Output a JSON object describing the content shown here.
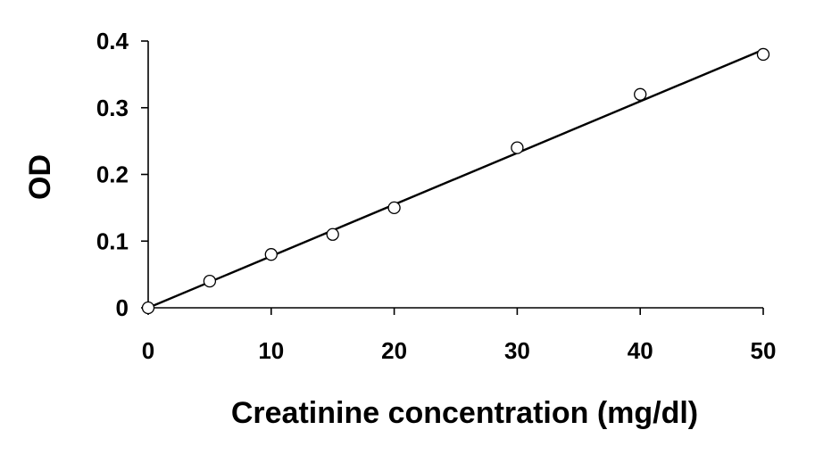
{
  "chart_data": {
    "type": "scatter",
    "title": "",
    "xlabel": "Creatinine concentration (mg/dl)",
    "ylabel": "OD",
    "xlim": [
      0,
      50
    ],
    "ylim": [
      0,
      0.4
    ],
    "x_ticks": [
      {
        "value": 0,
        "label": "0"
      },
      {
        "value": 10,
        "label": "10"
      },
      {
        "value": 20,
        "label": "20"
      },
      {
        "value": 30,
        "label": "30"
      },
      {
        "value": 40,
        "label": "40"
      },
      {
        "value": 50,
        "label": "50"
      }
    ],
    "y_ticks": [
      {
        "value": 0,
        "label": "0"
      },
      {
        "value": 0.1,
        "label": "0.1"
      },
      {
        "value": 0.2,
        "label": "0.2"
      },
      {
        "value": 0.3,
        "label": "0.3"
      },
      {
        "value": 0.4,
        "label": "0.4"
      }
    ],
    "grid": false,
    "legend": "none",
    "series": [
      {
        "marker": "open-circle",
        "color": "#000000",
        "points": [
          {
            "x": 0,
            "y": 0.0
          },
          {
            "x": 5,
            "y": 0.04
          },
          {
            "x": 10,
            "y": 0.08
          },
          {
            "x": 15,
            "y": 0.11
          },
          {
            "x": 20,
            "y": 0.15
          },
          {
            "x": 30,
            "y": 0.24
          },
          {
            "x": 40,
            "y": 0.32
          },
          {
            "x": 50,
            "y": 0.38
          }
        ]
      }
    ],
    "fit_line": {
      "kind": "linear",
      "color": "#000000",
      "x": [
        0,
        50
      ],
      "y": [
        0.0,
        0.387
      ]
    }
  }
}
